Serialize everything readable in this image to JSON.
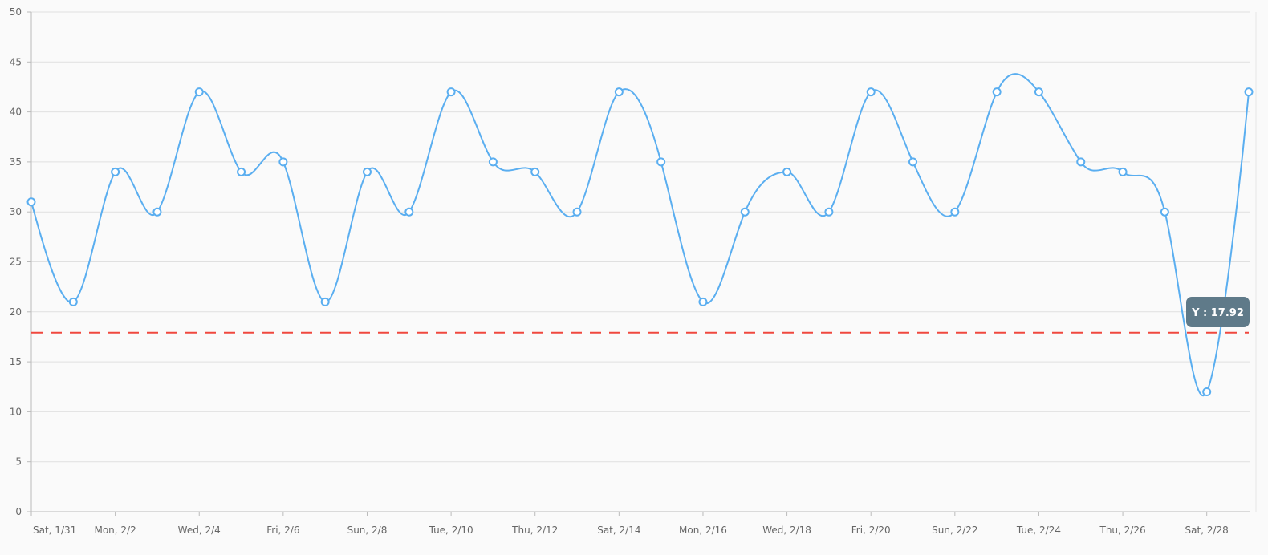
{
  "chart_data": {
    "type": "line",
    "interpolation": "spline",
    "x": [
      "1/31",
      "2/1",
      "2/2",
      "2/3",
      "2/4",
      "2/5",
      "2/6",
      "2/7",
      "2/8",
      "2/9",
      "2/10",
      "2/11",
      "2/12",
      "2/13",
      "2/14",
      "2/15",
      "2/16",
      "2/17",
      "2/18",
      "2/19",
      "2/20",
      "2/21",
      "2/22",
      "2/23",
      "2/24",
      "2/25",
      "2/26",
      "2/27",
      "2/28",
      "3/1"
    ],
    "x_tick_labels": [
      "Sat, 1/31",
      "Mon, 2/2",
      "Wed, 2/4",
      "Fri, 2/6",
      "Sun, 2/8",
      "Tue, 2/10",
      "Thu, 2/12",
      "Sat, 2/14",
      "Mon, 2/16",
      "Wed, 2/18",
      "Fri, 2/20",
      "Sun, 2/22",
      "Tue, 2/24",
      "Thu, 2/26",
      "Sat, 2/28"
    ],
    "series": [
      {
        "values": [
          31,
          21,
          34,
          30,
          42,
          34,
          35,
          21,
          34,
          30,
          42,
          35,
          34,
          30,
          42,
          35,
          21,
          30,
          34,
          30,
          42,
          35,
          30,
          42,
          42,
          35,
          34,
          30,
          12,
          42
        ],
        "color": "#5aaef0"
      }
    ],
    "ylim": [
      0,
      50
    ],
    "y_ticks": [
      0,
      5,
      10,
      15,
      20,
      25,
      30,
      35,
      40,
      45,
      50
    ],
    "grid": true,
    "threshold": {
      "value": 17.92,
      "label": "Y : 17.92",
      "color": "#f0483e",
      "style": "dashed"
    },
    "tooltip_color": "#5f7a89",
    "background": "#fafafa"
  }
}
